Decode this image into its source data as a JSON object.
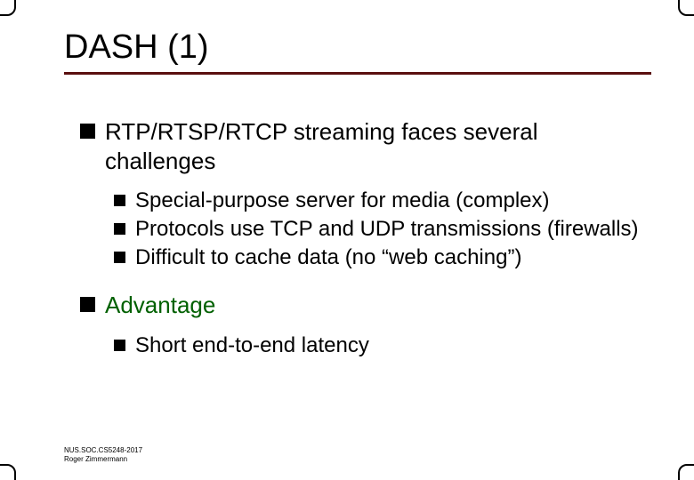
{
  "title": "DASH (1)",
  "colors": {
    "rule": "#5a0f0f",
    "advantage_text": "#006000",
    "bullet": "#000000",
    "text": "#000000",
    "background": "#ffffff"
  },
  "typography": {
    "title_fontsize": 38,
    "lvl1_fontsize": 26,
    "lvl2_fontsize": 24,
    "footer_fontsize": 8,
    "font_family": "Verdana"
  },
  "bullets": {
    "lvl1": [
      {
        "text": "RTP/RTSP/RTCP streaming faces several challenges",
        "style": "normal",
        "sub": [
          {
            "text": "Special-purpose server for media (complex)"
          },
          {
            "text": "Protocols use TCP and UDP transmissions (firewalls)"
          },
          {
            "text": "Difficult to cache data (no “web caching”)"
          }
        ]
      },
      {
        "text": "Advantage",
        "style": "advantage",
        "sub": [
          {
            "text": "Short end-to-end latency"
          }
        ]
      }
    ]
  },
  "footer": {
    "line1": "NUS.SOC.CS5248-2017",
    "line2": "Roger Zimmermann"
  }
}
